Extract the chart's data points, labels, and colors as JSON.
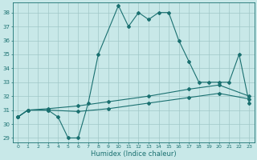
{
  "xlabel": "Humidex (Indice chaleur)",
  "ylabel": "",
  "bg_color": "#c8e8e8",
  "line_color": "#1a7070",
  "grid_color": "#a0c8c8",
  "xlim": [
    -0.5,
    23.5
  ],
  "ylim": [
    28.7,
    38.7
  ],
  "yticks": [
    29,
    30,
    31,
    32,
    33,
    34,
    35,
    36,
    37,
    38
  ],
  "xticks": [
    0,
    1,
    2,
    3,
    4,
    5,
    6,
    7,
    8,
    9,
    10,
    11,
    12,
    13,
    14,
    15,
    16,
    17,
    18,
    19,
    20,
    21,
    22,
    23
  ],
  "series1_x": [
    0,
    1,
    3,
    4,
    5,
    6,
    7,
    8,
    10,
    11,
    12,
    13,
    14,
    15,
    16,
    17,
    18,
    19,
    20,
    21,
    22,
    23
  ],
  "series1_y": [
    30.5,
    31.0,
    31.0,
    30.5,
    29.0,
    29.0,
    31.5,
    35.0,
    38.5,
    37.0,
    38.0,
    37.5,
    38.0,
    38.0,
    36.0,
    34.5,
    33.0,
    33.0,
    33.0,
    33.0,
    35.0,
    31.5
  ],
  "series2_x": [
    0,
    1,
    3,
    6,
    9,
    13,
    17,
    20,
    23
  ],
  "series2_y": [
    30.5,
    31.0,
    31.1,
    31.3,
    31.6,
    32.0,
    32.5,
    32.8,
    32.0
  ],
  "series3_x": [
    0,
    1,
    3,
    6,
    9,
    13,
    17,
    20,
    23
  ],
  "series3_y": [
    30.5,
    31.0,
    31.0,
    30.9,
    31.1,
    31.5,
    31.9,
    32.2,
    31.8
  ]
}
